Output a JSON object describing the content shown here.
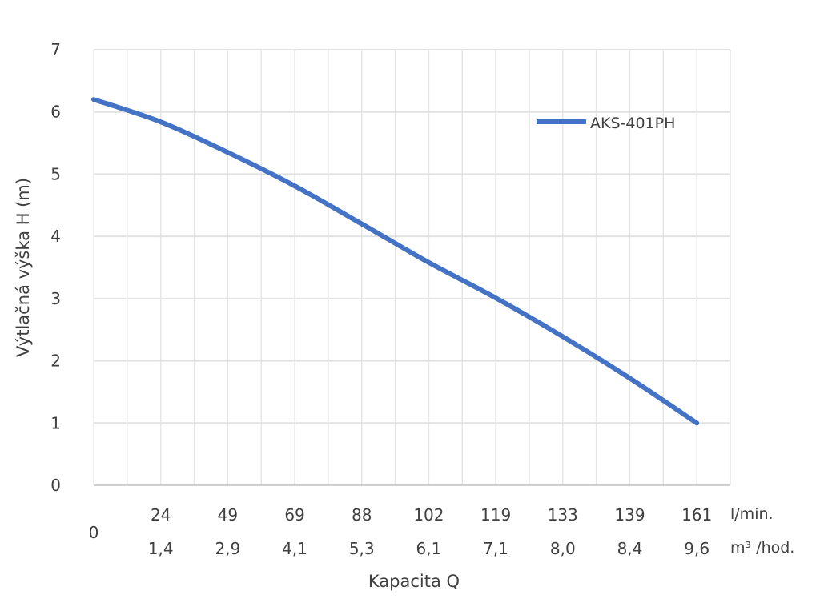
{
  "chart_data": {
    "type": "line",
    "title": "",
    "xlabel": "Kapacita Q",
    "ylabel": "Výtlačná výška H (m)",
    "ylim": [
      0,
      7
    ],
    "yticks": [
      "0",
      "1",
      "2",
      "3",
      "4",
      "5",
      "6",
      "7"
    ],
    "grid": true,
    "x_unit_1": "l/min.",
    "x_unit_2": "m³ /hod.",
    "categories_lmin": [
      "0",
      "24",
      "49",
      "69",
      "88",
      "102",
      "119",
      "133",
      "139",
      "161"
    ],
    "categories_m3h": [
      "",
      "1,4",
      "2,9",
      "4,1",
      "5,3",
      "6,1",
      "7,1",
      "8,0",
      "8,4",
      "9,6"
    ],
    "series": [
      {
        "name": "AKS-401PH",
        "color": "#4472C4",
        "values": [
          6.2,
          5.84,
          5.35,
          4.81,
          4.2,
          3.58,
          3.01,
          2.39,
          1.72,
          1.0
        ]
      }
    ],
    "legend_position": "top-right"
  }
}
